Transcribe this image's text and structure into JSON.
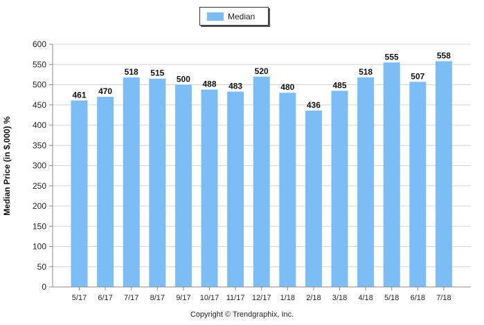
{
  "chart_data": {
    "type": "bar",
    "categories": [
      "5/17",
      "6/17",
      "7/17",
      "8/17",
      "9/17",
      "10/17",
      "11/17",
      "12/17",
      "1/18",
      "2/18",
      "3/18",
      "4/18",
      "5/18",
      "6/18",
      "7/18"
    ],
    "series": [
      {
        "name": "Median",
        "values": [
          461,
          470,
          518,
          515,
          500,
          488,
          483,
          520,
          480,
          436,
          485,
          518,
          555,
          507,
          558
        ]
      }
    ],
    "title": "",
    "xlabel": "",
    "ylabel": "Median Price (in $,000) %",
    "ylim": [
      0,
      600
    ],
    "yticks": [
      0,
      50,
      100,
      150,
      200,
      250,
      300,
      350,
      400,
      450,
      500,
      550,
      600
    ],
    "grid": true,
    "legend_position": "top-center",
    "data_labels": true,
    "bar_color": "#7BBDF4"
  },
  "legend": {
    "label": "Median",
    "color": "#7BBDF4"
  },
  "footer": {
    "copyright": "Copyright © Trendgraphix, Inc."
  }
}
